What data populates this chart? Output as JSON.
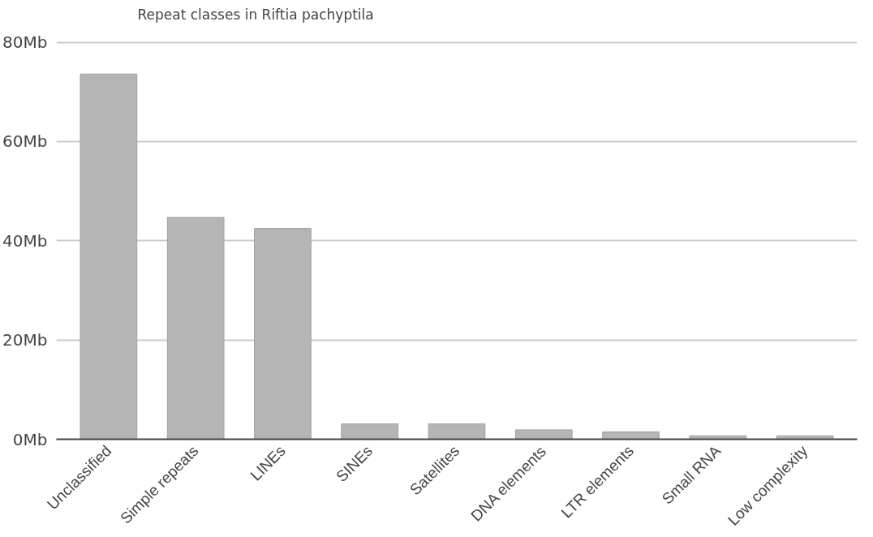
{
  "chart_data": {
    "type": "bar",
    "title": "Repeat classes in Riftia pachyptila",
    "categories": [
      "Unclassified",
      "Simple repeats",
      "LINEs",
      "SINEs",
      "Satellites",
      "DNA elements",
      "LTR elements",
      "Small RNA",
      "Low complexity"
    ],
    "values": [
      73.6,
      44.7,
      42.5,
      3.1,
      3.1,
      1.9,
      1.5,
      0.7,
      0.7
    ],
    "color": "#b5b5b5",
    "ylim": [
      0,
      80
    ],
    "yticks": [
      {
        "value": 0,
        "label": "0Mb"
      },
      {
        "value": 20,
        "label": "20Mb"
      },
      {
        "value": 40,
        "label": "40Mb"
      },
      {
        "value": 60,
        "label": "60Mb"
      },
      {
        "value": 80,
        "label": "80Mb"
      }
    ],
    "grid": "y"
  }
}
